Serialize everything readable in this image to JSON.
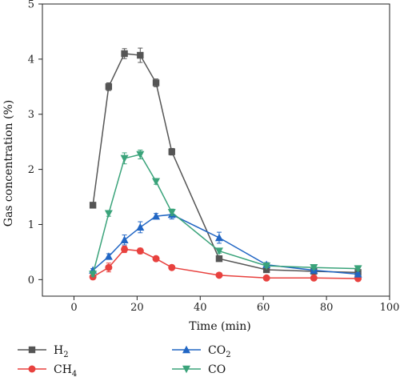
{
  "chart_data": {
    "type": "line",
    "xlabel": "Time (min)",
    "ylabel": "Gas concentration (%)",
    "xlim": [
      -10,
      100
    ],
    "ylim": [
      -0.3,
      5
    ],
    "xticks": [
      0,
      20,
      40,
      60,
      80,
      100
    ],
    "yticks": [
      0,
      1,
      2,
      3,
      4,
      5
    ],
    "grid": false,
    "legend_position": "bottom",
    "series": [
      {
        "name": "H2",
        "name_base": "H",
        "name_sub": "2",
        "color": "#555555",
        "marker": "square",
        "x": [
          6,
          11,
          16,
          21,
          26,
          31,
          46,
          61,
          76,
          90
        ],
        "y": [
          1.35,
          3.5,
          4.1,
          4.07,
          3.57,
          2.32,
          0.38,
          0.18,
          0.15,
          0.13
        ],
        "err": [
          0.05,
          0.07,
          0.09,
          0.13,
          0.07,
          0.06,
          0.04,
          0.03,
          0.03,
          0.03
        ]
      },
      {
        "name": "CH4",
        "name_base": "CH",
        "name_sub": "4",
        "color": "#e8413e",
        "marker": "circle",
        "x": [
          6,
          11,
          16,
          21,
          26,
          31,
          46,
          61,
          76,
          90
        ],
        "y": [
          0.05,
          0.22,
          0.55,
          0.52,
          0.38,
          0.22,
          0.08,
          0.03,
          0.03,
          0.02
        ],
        "err": [
          0.04,
          0.08,
          0.06,
          0.05,
          0.03,
          0.04,
          0.02,
          0.02,
          0.02,
          0.02
        ]
      },
      {
        "name": "CO2",
        "name_base": "CO",
        "name_sub": "2",
        "color": "#2166c4",
        "marker": "triangle-up",
        "x": [
          6,
          11,
          16,
          21,
          26,
          31,
          46,
          61,
          76,
          90
        ],
        "y": [
          0.17,
          0.42,
          0.72,
          0.95,
          1.15,
          1.18,
          0.76,
          0.27,
          0.17,
          0.1
        ],
        "err": [
          0.03,
          0.05,
          0.09,
          0.1,
          0.05,
          0.08,
          0.1,
          0.04,
          0.03,
          0.03
        ]
      },
      {
        "name": "CO",
        "name_base": "CO",
        "name_sub": "",
        "color": "#3aa37a",
        "marker": "triangle-down",
        "x": [
          6,
          11,
          16,
          21,
          26,
          31,
          46,
          61,
          76,
          90
        ],
        "y": [
          0.1,
          1.2,
          2.2,
          2.27,
          1.78,
          1.22,
          0.52,
          0.25,
          0.22,
          0.2
        ],
        "err": [
          0.04,
          0.05,
          0.1,
          0.08,
          0.05,
          0.06,
          0.04,
          0.03,
          0.03,
          0.03
        ]
      }
    ]
  }
}
